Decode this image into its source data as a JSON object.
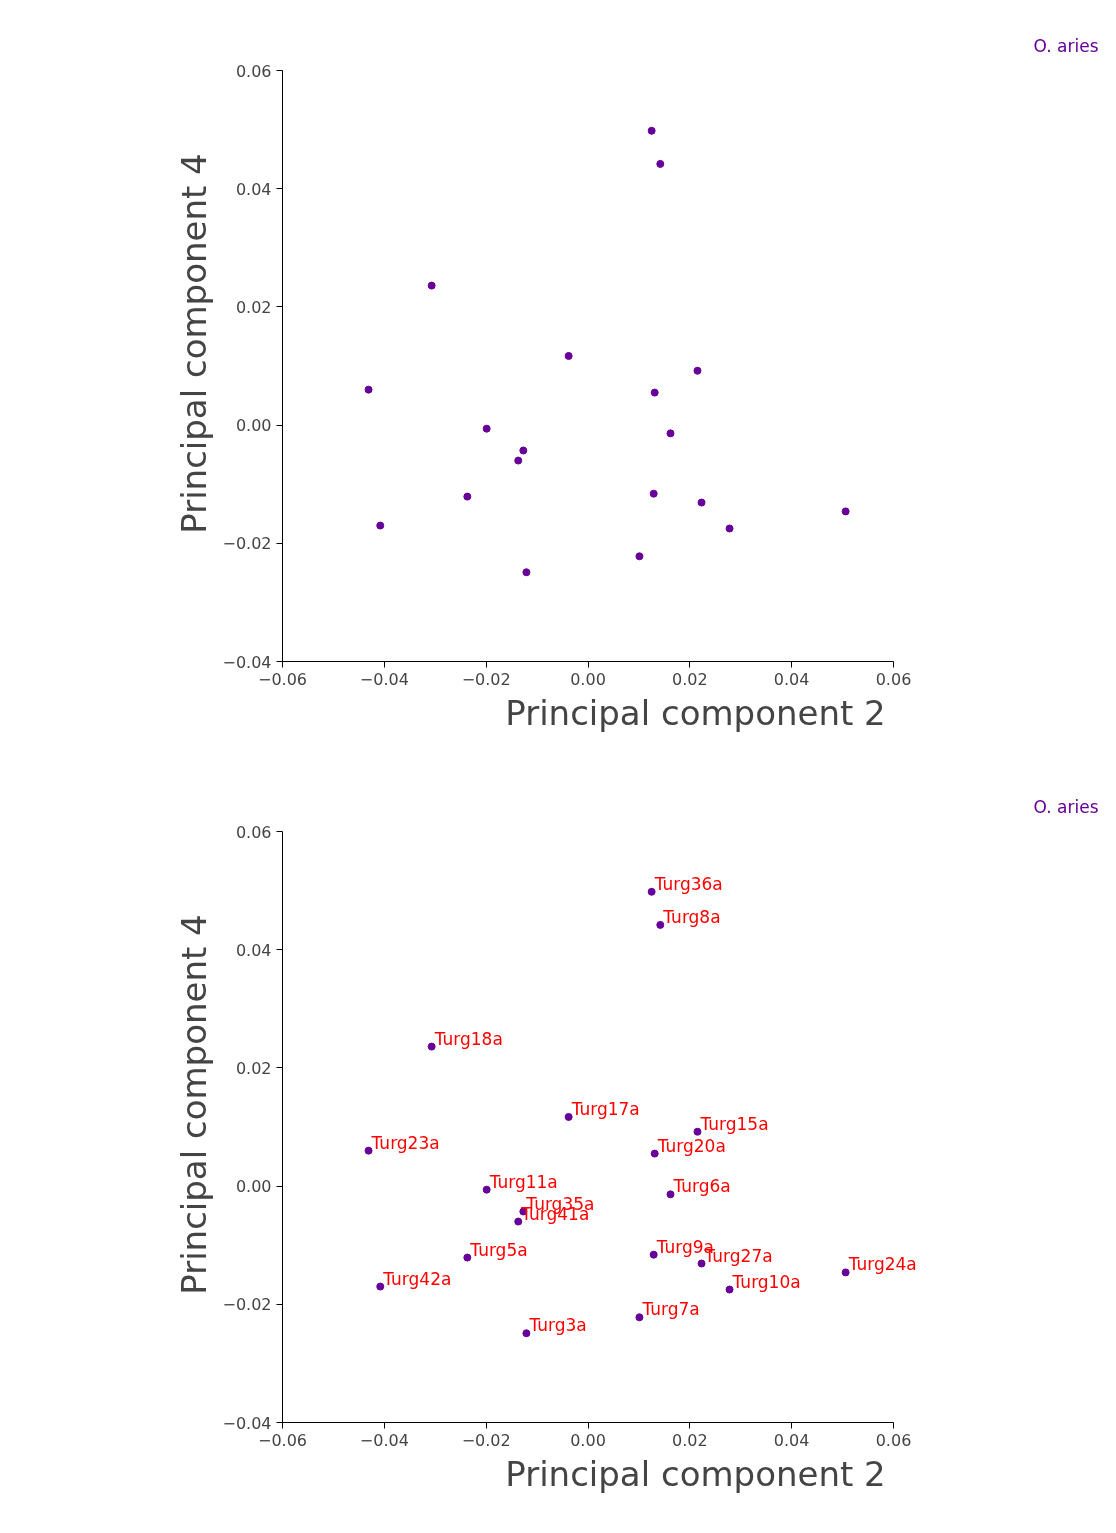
{
  "chart_data": [
    {
      "type": "scatter",
      "xlabel": "Principal component 2",
      "ylabel": "Principal component 4",
      "color": "#660099",
      "marker": "circle",
      "grid": false,
      "xlim": [
        -0.06,
        0.06
      ],
      "ylim": [
        -0.04,
        0.06
      ],
      "xticks": [
        {
          "value": -0.06,
          "label": "−0.06"
        },
        {
          "value": -0.04,
          "label": "−0.04"
        },
        {
          "value": -0.02,
          "label": "−0.02"
        },
        {
          "value": 0,
          "label": "0.00"
        },
        {
          "value": 0.02,
          "label": "0.02"
        },
        {
          "value": 0.04,
          "label": "0.04"
        },
        {
          "value": 0.06,
          "label": "0.06"
        }
      ],
      "yticks": [
        {
          "value": -0.04,
          "label": "−0.04"
        },
        {
          "value": -0.02,
          "label": "−0.02"
        },
        {
          "value": 0,
          "label": "0.00"
        },
        {
          "value": 0.02,
          "label": "0.02"
        },
        {
          "value": 0.04,
          "label": "0.04"
        },
        {
          "value": 0.06,
          "label": "0.06"
        }
      ],
      "x": [
        0.0125,
        0.0142,
        -0.0307,
        -0.0038,
        0.0215,
        -0.0431,
        0.0131,
        -0.0199,
        0.0162,
        -0.0127,
        -0.0137,
        -0.0237,
        0.0129,
        0.0223,
        0.0506,
        -0.0408,
        0.0278,
        0.0101,
        -0.0121
      ],
      "values": [
        0.0498,
        0.0442,
        0.0236,
        0.0117,
        0.0092,
        0.006,
        0.0055,
        -0.0006,
        -0.0014,
        -0.0043,
        -0.006,
        -0.0121,
        -0.0116,
        -0.0131,
        -0.0146,
        -0.017,
        -0.0175,
        -0.0222,
        -0.0249
      ],
      "annotations": [
        "O. aries"
      ]
    },
    {
      "type": "scatter",
      "xlabel": "Principal component 2",
      "ylabel": "Principal component 4",
      "color": "#660099",
      "marker": "circle",
      "grid": false,
      "xlim": [
        -0.06,
        0.06
      ],
      "ylim": [
        -0.04,
        0.06
      ],
      "xticks": [
        {
          "value": -0.06,
          "label": "−0.06"
        },
        {
          "value": -0.04,
          "label": "−0.04"
        },
        {
          "value": -0.02,
          "label": "−0.02"
        },
        {
          "value": 0,
          "label": "0.00"
        },
        {
          "value": 0.02,
          "label": "0.02"
        },
        {
          "value": 0.04,
          "label": "0.04"
        },
        {
          "value": 0.06,
          "label": "0.06"
        }
      ],
      "yticks": [
        {
          "value": -0.04,
          "label": "−0.04"
        },
        {
          "value": -0.02,
          "label": "−0.02"
        },
        {
          "value": 0,
          "label": "0.00"
        },
        {
          "value": 0.02,
          "label": "0.02"
        },
        {
          "value": 0.04,
          "label": "0.04"
        },
        {
          "value": 0.06,
          "label": "0.06"
        }
      ],
      "x": [
        0.0125,
        0.0142,
        -0.0307,
        -0.0038,
        0.0215,
        -0.0431,
        0.0131,
        -0.0199,
        0.0162,
        -0.0127,
        -0.0137,
        -0.0237,
        0.0129,
        0.0223,
        0.0506,
        -0.0408,
        0.0278,
        0.0101,
        -0.0121
      ],
      "values": [
        0.0498,
        0.0442,
        0.0236,
        0.0117,
        0.0092,
        0.006,
        0.0055,
        -0.0006,
        -0.0014,
        -0.0043,
        -0.006,
        -0.0121,
        -0.0116,
        -0.0131,
        -0.0146,
        -0.017,
        -0.0175,
        -0.0222,
        -0.0249
      ],
      "annotations": [
        "O. aries",
        {
          "text": "Turg36a",
          "x": 0.0125,
          "y": 0.0498
        },
        {
          "text": "Turg8a",
          "x": 0.0142,
          "y": 0.0442
        },
        {
          "text": "Turg18a",
          "x": -0.0307,
          "y": 0.0236
        },
        {
          "text": "Turg17a",
          "x": -0.0038,
          "y": 0.0117
        },
        {
          "text": "Turg15a",
          "x": 0.0215,
          "y": 0.0092
        },
        {
          "text": "Turg23a",
          "x": -0.0431,
          "y": 0.006
        },
        {
          "text": "Turg20a",
          "x": 0.0131,
          "y": 0.0055
        },
        {
          "text": "Turg11a",
          "x": -0.0199,
          "y": -0.0006
        },
        {
          "text": "Turg6a",
          "x": 0.0162,
          "y": -0.0014
        },
        {
          "text": "Turg35a",
          "x": -0.0127,
          "y": -0.0043
        },
        {
          "text": "Turg41a",
          "x": -0.0137,
          "y": -0.006
        },
        {
          "text": "Turg5a",
          "x": -0.0237,
          "y": -0.0121
        },
        {
          "text": "Turg9a",
          "x": 0.0129,
          "y": -0.0116
        },
        {
          "text": "Turg27a",
          "x": 0.0223,
          "y": -0.0131
        },
        {
          "text": "Turg24a",
          "x": 0.0506,
          "y": -0.0146
        },
        {
          "text": "Turg42a",
          "x": -0.0408,
          "y": -0.017
        },
        {
          "text": "Turg10a",
          "x": 0.0278,
          "y": -0.0175
        },
        {
          "text": "Turg7a",
          "x": 0.0101,
          "y": -0.0222
        },
        {
          "text": "Turg3a",
          "x": -0.0121,
          "y": -0.0249
        }
      ]
    }
  ]
}
